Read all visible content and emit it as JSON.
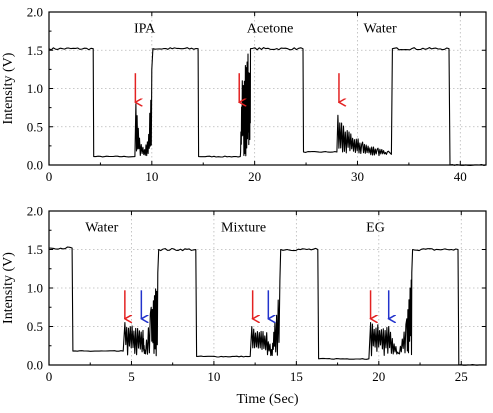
{
  "chart_data": [
    {
      "type": "line",
      "xlim": [
        0,
        42.5
      ],
      "ylim": [
        0,
        2.0
      ],
      "x_ticks": [
        0,
        10,
        20,
        30,
        40
      ],
      "y_ticks": [
        0.0,
        0.5,
        1.0,
        1.5,
        2.0
      ],
      "ylabel": "Intensity (V)",
      "xlabel": "",
      "grid": true,
      "annotations": [
        {
          "text": "IPA",
          "x": 9.3,
          "y": 1.8
        },
        {
          "text": "Acetone",
          "x": 21.5,
          "y": 1.8
        },
        {
          "text": "Water",
          "x": 32.2,
          "y": 1.8
        }
      ],
      "arrows": [
        {
          "x": 8.4,
          "y_tail": 1.2,
          "y_head": 0.82,
          "color": "#e32222"
        },
        {
          "x": 18.5,
          "y_tail": 1.2,
          "y_head": 0.82,
          "color": "#e32222"
        },
        {
          "x": 28.2,
          "y_tail": 1.2,
          "y_head": 0.82,
          "color": "#e32222"
        }
      ],
      "series": [
        {
          "x": [
            0,
            4.3,
            4.35,
            8.35,
            8.45,
            8.8,
            9.3,
            9.7,
            10.0,
            10.1,
            14.5,
            14.55,
            18.6,
            18.8,
            19.1,
            19.35,
            19.45,
            19.6,
            24.7,
            24.75,
            28.0,
            28.1,
            29.0,
            30.5,
            32.0,
            33.0,
            33.3,
            33.4,
            38.9,
            39.0,
            42.5
          ],
          "y": [
            1.52,
            1.52,
            0.11,
            0.11,
            0.8,
            0.35,
            0.2,
            0.4,
            1.25,
            1.52,
            1.52,
            0.11,
            0.11,
            1.1,
            1.3,
            1.45,
            1.2,
            1.52,
            1.52,
            0.17,
            0.17,
            0.65,
            0.45,
            0.3,
            0.22,
            0.18,
            0.14,
            1.52,
            1.52,
            0.0,
            0.0
          ],
          "noise_intervals": [
            [
              8.4,
              10.0
            ],
            [
              18.6,
              19.6
            ],
            [
              28.1,
              33.2
            ]
          ]
        }
      ]
    },
    {
      "type": "line",
      "xlim": [
        0,
        26.5
      ],
      "ylim": [
        0,
        2.0
      ],
      "x_ticks": [
        0,
        5,
        10,
        15,
        20,
        25
      ],
      "y_ticks": [
        0.0,
        0.5,
        1.0,
        1.5,
        2.0
      ],
      "ylabel": "Intensity (V)",
      "xlabel": "Time (Sec)",
      "grid": true,
      "annotations": [
        {
          "text": "Water",
          "x": 3.2,
          "y": 1.8
        },
        {
          "text": "Mixture",
          "x": 11.8,
          "y": 1.8
        },
        {
          "text": "EG",
          "x": 19.8,
          "y": 1.8
        }
      ],
      "arrows": [
        {
          "x": 4.6,
          "y_tail": 0.97,
          "y_head": 0.6,
          "color": "#e32222"
        },
        {
          "x": 5.6,
          "y_tail": 0.97,
          "y_head": 0.6,
          "color": "#2233cc"
        },
        {
          "x": 12.35,
          "y_tail": 0.97,
          "y_head": 0.6,
          "color": "#e32222"
        },
        {
          "x": 13.3,
          "y_tail": 0.97,
          "y_head": 0.6,
          "color": "#2233cc"
        },
        {
          "x": 19.5,
          "y_tail": 0.97,
          "y_head": 0.6,
          "color": "#e32222"
        },
        {
          "x": 20.6,
          "y_tail": 0.97,
          "y_head": 0.6,
          "color": "#2233cc"
        }
      ],
      "series": [
        {
          "x": [
            0,
            1.4,
            1.45,
            4.5,
            4.6,
            5.7,
            5.8,
            6.2,
            6.4,
            6.6,
            6.65,
            8.9,
            8.95,
            12.2,
            12.3,
            13.2,
            13.5,
            13.7,
            14.0,
            14.05,
            16.3,
            16.35,
            19.4,
            19.5,
            20.6,
            21.2,
            21.7,
            21.9,
            22.0,
            22.05,
            24.8,
            24.85,
            26.5
          ],
          "y": [
            1.52,
            1.52,
            0.18,
            0.18,
            0.55,
            0.45,
            0.2,
            0.75,
            0.9,
            1.2,
            1.5,
            1.5,
            0.11,
            0.11,
            0.5,
            0.42,
            0.2,
            0.55,
            1.1,
            1.5,
            1.5,
            0.08,
            0.08,
            0.55,
            0.5,
            0.15,
            0.6,
            1.0,
            1.2,
            1.5,
            1.5,
            0.0,
            0.0
          ],
          "noise_intervals": [
            [
              4.6,
              6.6
            ],
            [
              12.3,
              14.0
            ],
            [
              19.5,
              22.0
            ]
          ]
        }
      ]
    }
  ]
}
